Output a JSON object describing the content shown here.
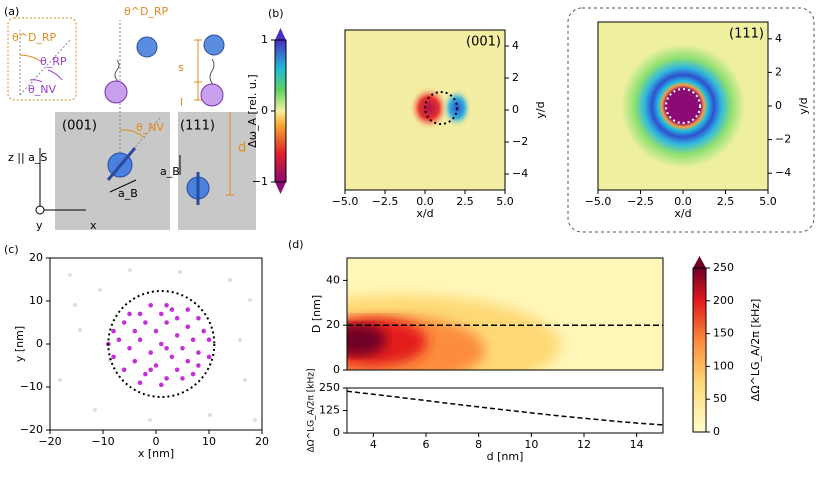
{
  "panels": {
    "a": "(a)",
    "b": "(b)",
    "c": "(c)",
    "d": "(d)"
  },
  "diagram": {
    "theta_rpd_box": "θ^D_RP",
    "theta_rp_box": "θ_RP",
    "theta_nv_box": "θ_NV",
    "theta_rpd": "θ^D_RP",
    "theta_nv": "θ_NV",
    "s": "s",
    "l": "l",
    "d": "d",
    "face001": "(001)",
    "face111": "(111)",
    "z_axis": "z || a_S",
    "y_axis": "y",
    "x_axis": "x",
    "ab1": "a_B",
    "ab2": "a_B"
  },
  "chart_data": [
    {
      "type": "heatmap",
      "label": "(001)",
      "xlabel": "x/d",
      "ylabel": "y/d",
      "xlim": [
        -5,
        5
      ],
      "ylim": [
        -5,
        5
      ],
      "xticks": [
        {
          "value": -5,
          "label": "−5.0"
        },
        {
          "value": -2.5,
          "label": "−2.5"
        },
        {
          "value": 0,
          "label": "0.0"
        },
        {
          "value": 2.5,
          "label": "2.5"
        },
        {
          "value": 5,
          "label": "5.0"
        }
      ],
      "yticks": [
        {
          "value": -4,
          "label": "−4"
        },
        {
          "value": -2,
          "label": "−2"
        },
        0,
        2,
        4
      ],
      "colorbar": {
        "label": "Δω_A [rel. u.]",
        "lim": [
          -1,
          1
        ],
        "ticks": [
          {
            "value": -1,
            "label": "−1"
          },
          0,
          1
        ]
      }
    },
    {
      "type": "heatmap",
      "label": "(111)",
      "xlabel": "x/d",
      "ylabel": "y/d",
      "xlim": [
        -5,
        5
      ],
      "ylim": [
        -5,
        5
      ],
      "xticks": [
        {
          "value": -5,
          "label": "−5.0"
        },
        {
          "value": -2.5,
          "label": "−2.5"
        },
        {
          "value": 0,
          "label": "0.0"
        },
        {
          "value": 2.5,
          "label": "2.5"
        },
        {
          "value": 5,
          "label": "5.0"
        }
      ],
      "yticks": [
        {
          "value": -4,
          "label": "−4"
        },
        {
          "value": -2,
          "label": "−2"
        },
        0,
        2,
        4
      ]
    },
    {
      "type": "scatter",
      "xlabel": "x [nm]",
      "ylabel": "y [nm]",
      "xlim": [
        -20,
        20
      ],
      "ylim": [
        -20,
        20
      ],
      "color": "#c431d8",
      "xticks": [
        {
          "value": -20,
          "label": "−20"
        },
        {
          "value": -10,
          "label": "−10"
        },
        0,
        10,
        20
      ],
      "yticks": [
        {
          "value": -20,
          "label": "−20"
        },
        {
          "value": -10,
          "label": "−10"
        },
        0,
        10,
        20
      ],
      "x": [
        2,
        6,
        -3,
        1,
        4,
        8,
        -6,
        -2,
        2,
        6,
        9,
        -8,
        -4,
        0,
        4,
        7,
        10,
        -7,
        -3,
        1,
        5,
        8,
        -5,
        -1,
        3,
        6,
        -8,
        -4,
        0,
        4,
        8,
        -6,
        -2,
        2,
        5,
        -3,
        1,
        10,
        -9,
        3,
        -1,
        -5,
        7,
        2,
        -1
      ],
      "y": [
        9,
        8,
        7,
        7,
        6,
        6,
        5,
        5,
        5,
        4,
        3,
        3,
        3,
        3,
        2,
        1,
        1,
        1,
        1,
        0,
        -1,
        -2,
        -1,
        -2,
        -3,
        -4,
        -3,
        -4,
        -5,
        -6,
        -5,
        -6,
        -7,
        -8,
        -8,
        -9,
        -9.5,
        -3,
        0,
        8,
        9,
        7,
        -7,
        -1,
        -6
      ]
    },
    {
      "type": "heatmap",
      "ylabel": "D [nm]",
      "xlim": [
        3,
        15
      ],
      "ylim": [
        0,
        50
      ],
      "yticks": [
        0,
        20,
        40
      ],
      "hline": 20,
      "colorbar": {
        "label": "ΔΩ^LG_A/2π [kHz]",
        "lim": [
          0,
          250
        ],
        "ticks": [
          0,
          50,
          100,
          150,
          200,
          250
        ]
      }
    },
    {
      "type": "line",
      "xlabel": "d [nm]",
      "ylabel": "ΔΩ^LG_A/2π [kHz]",
      "xlim": [
        3,
        15
      ],
      "ylim": [
        0,
        250
      ],
      "xticks": [
        4,
        6,
        8,
        10,
        12,
        14
      ],
      "yticks": [
        0,
        125,
        250
      ],
      "x": [
        3,
        4,
        5,
        6,
        7,
        8,
        9,
        10,
        11,
        12,
        13,
        14,
        15
      ],
      "values": [
        232,
        215,
        198,
        180,
        162,
        145,
        128,
        112,
        96,
        82,
        68,
        55,
        45
      ]
    }
  ]
}
